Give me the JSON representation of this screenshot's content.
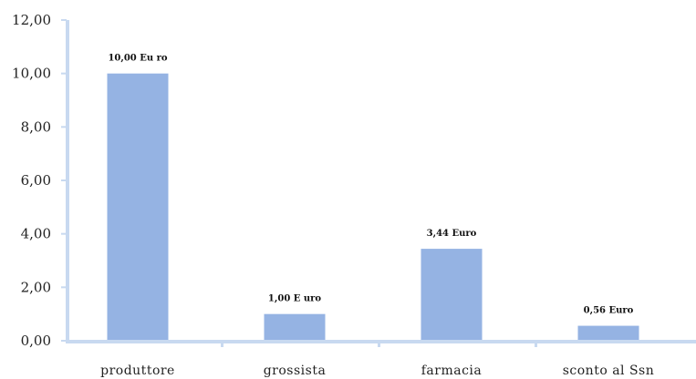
{
  "chart_data": {
    "type": "bar",
    "categories": [
      "produttore",
      "grossista",
      "farmacia",
      "sconto al Ssn"
    ],
    "values": [
      10.0,
      1.0,
      3.44,
      0.56
    ],
    "data_labels": [
      "10,00 Eu ro",
      "1,00 E uro",
      "3,44 Euro",
      "0,56 Euro"
    ],
    "ylim": [
      0,
      12
    ],
    "y_ticks": [
      0,
      2,
      4,
      6,
      8,
      10,
      12
    ],
    "y_tick_labels": [
      "0,00",
      "2,00",
      "4,00",
      "6,00",
      "8,00",
      "10,00",
      "12,00"
    ],
    "category_labels": [
      "produttore",
      "grossista",
      "farmacia",
      "sconto al Ssn"
    ],
    "title": "",
    "xlabel": "",
    "ylabel": "",
    "grid": false,
    "legend": "none",
    "colors": {
      "bar": "#95b3e3",
      "axis": "#c8d9f0",
      "text": "#222222"
    }
  }
}
